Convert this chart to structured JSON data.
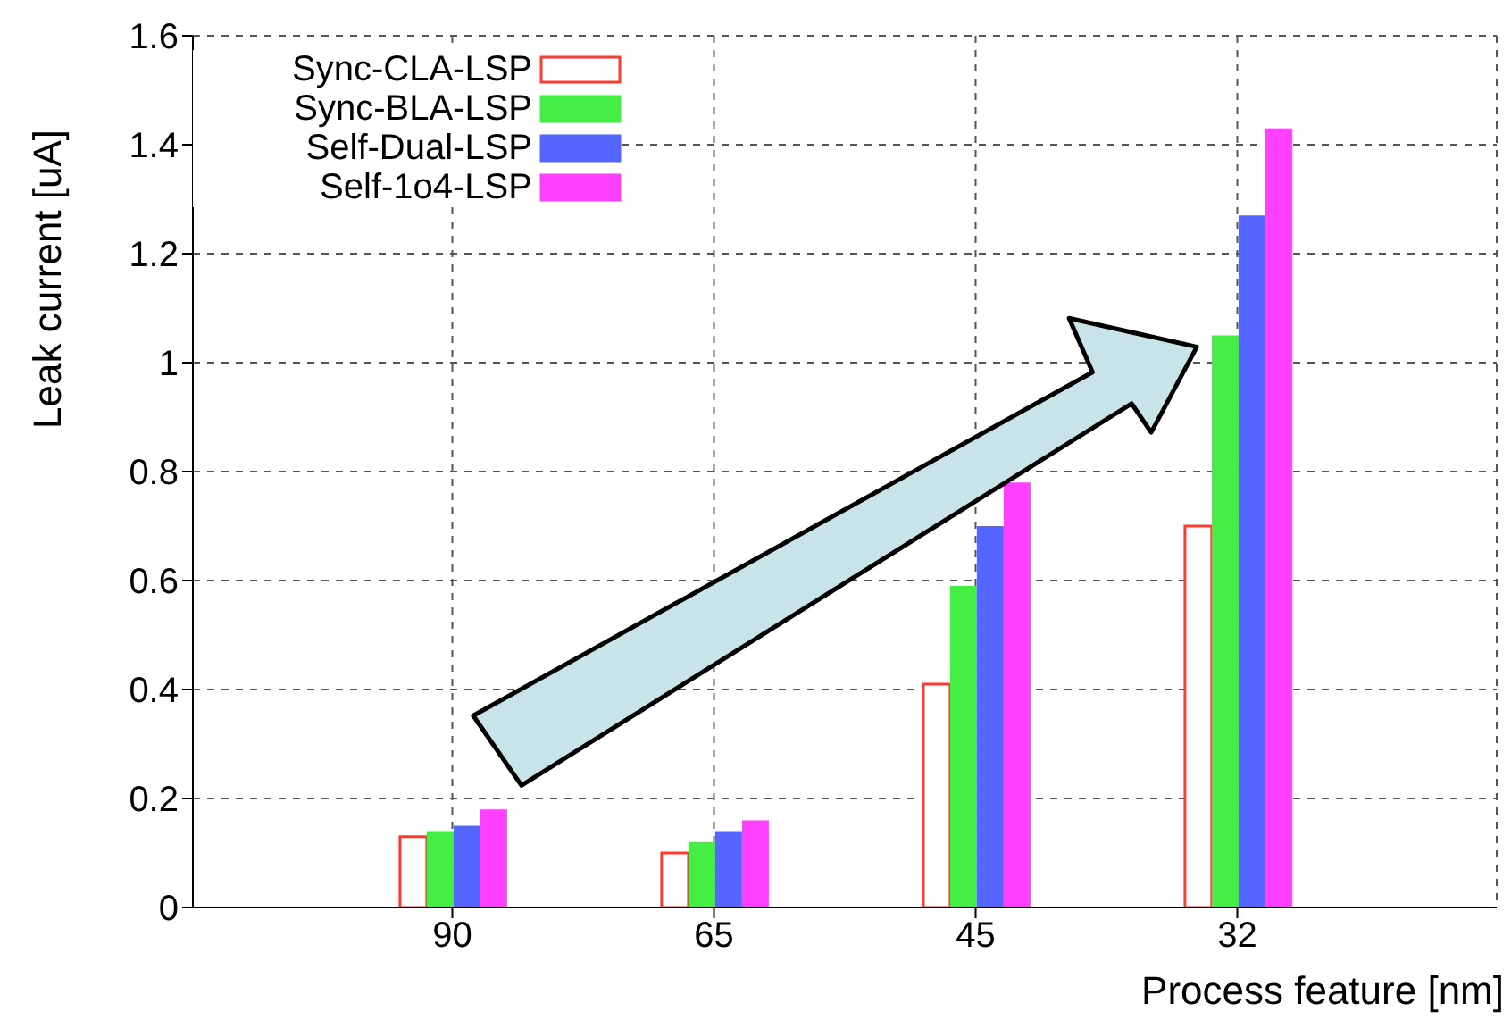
{
  "chart_data": {
    "type": "bar",
    "xlabel": "Process feature [nm]",
    "ylabel": "Leak current [uA]",
    "categories": [
      "90",
      "65",
      "45",
      "32"
    ],
    "series": [
      {
        "name": "Sync-CLA-LSP",
        "color": "#ff3b30",
        "values": [
          0.13,
          0.1,
          0.41,
          0.7
        ]
      },
      {
        "name": "Sync-BLA-LSP",
        "color": "#44ee44",
        "values": [
          0.14,
          0.12,
          0.59,
          1.05
        ]
      },
      {
        "name": "Self-Dual-LSP",
        "color": "#5566ff",
        "values": [
          0.15,
          0.14,
          0.7,
          1.27
        ]
      },
      {
        "name": "Self-1o4-LSP",
        "color": "#ff40ff",
        "values": [
          0.18,
          0.16,
          0.78,
          1.43
        ]
      }
    ],
    "ylim": [
      0,
      1.6
    ],
    "yticks": [
      0,
      0.2,
      0.4,
      0.6,
      0.8,
      1,
      1.2,
      1.4,
      1.6
    ],
    "grid": true,
    "legend": "top left"
  }
}
